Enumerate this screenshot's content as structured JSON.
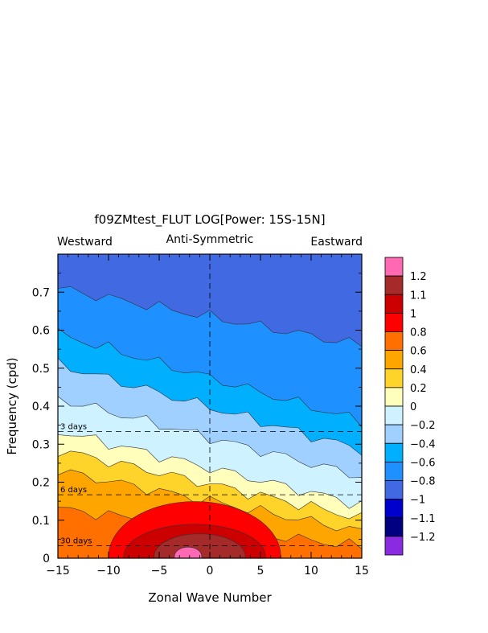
{
  "chart_data": {
    "type": "heatmap",
    "title": "f09ZMtest_FLUT LOG[Power: 15S-15N]",
    "subtitle": "Anti-Symmetric",
    "left_label": "Westward",
    "right_label": "Eastward",
    "xlabel": "Zonal Wave Number",
    "ylabel": "Frequency (cpd)",
    "xlim": [
      -15,
      15
    ],
    "ylim": [
      0,
      0.8
    ],
    "x_ticks": [
      "−15",
      "−10",
      "−5",
      "0",
      "5",
      "10",
      "15"
    ],
    "y_ticks": [
      "0",
      "0.1",
      "0.2",
      "0.3",
      "0.4",
      "0.5",
      "0.6",
      "0.7"
    ],
    "period_lines": [
      {
        "label": "3 days",
        "frequency": 0.333
      },
      {
        "label": "6 days",
        "frequency": 0.167
      },
      {
        "label": "30 days",
        "frequency": 0.033
      }
    ],
    "colorbar": {
      "labels": [
        "1.2",
        "1.1",
        "1",
        "0.8",
        "0.6",
        "0.4",
        "0.2",
        "0",
        "−0.2",
        "−0.4",
        "−0.6",
        "−0.8",
        "−1",
        "−1.1",
        "−1.2"
      ],
      "colors": [
        "#ff69b4",
        "#a52a2a",
        "#cc0000",
        "#ff0000",
        "#ff7000",
        "#ffa500",
        "#ffd42a",
        "#ffffbb",
        "#cef2ff",
        "#a0d0ff",
        "#00b0ff",
        "#1e90ff",
        "#4169e1",
        "#0000cd",
        "#000080",
        "#8a2be2"
      ]
    },
    "contour_levels": [
      {
        "level": -0.8,
        "color": "#1e90ff",
        "y_west": 0.71,
        "y_east": 0.56
      },
      {
        "level": -0.6,
        "color": "#00b0ff",
        "y_west": 0.59,
        "y_east": 0.36
      },
      {
        "level": -0.4,
        "color": "#a0d0ff",
        "y_west": 0.51,
        "y_east": 0.285
      },
      {
        "level": -0.2,
        "color": "#cef2ff",
        "y_west": 0.42,
        "y_east": 0.215
      },
      {
        "level": 0,
        "color": "#ffffbb",
        "y_west": 0.335,
        "y_east": 0.14
      },
      {
        "level": 0.2,
        "color": "#ffd42a",
        "y_west": 0.285,
        "y_east": 0.105
      },
      {
        "level": 0.4,
        "color": "#ffa500",
        "y_west": 0.23,
        "y_east": 0.07
      },
      {
        "level": 0.6,
        "color": "#ff7000",
        "y_west": 0.13,
        "y_east": 0.03
      }
    ],
    "peak_regions": [
      {
        "level": 0.8,
        "color": "#ff0000",
        "x_range": [
          -10,
          7
        ],
        "y_range": [
          0,
          0.145
        ]
      },
      {
        "level": 1,
        "color": "#cc0000",
        "x_range": [
          -8.5,
          5.5
        ],
        "y_range": [
          0,
          0.085
        ]
      },
      {
        "level": 1.1,
        "color": "#a52a2a",
        "x_range": [
          -5.5,
          3.5
        ],
        "y_range": [
          0,
          0.06
        ]
      },
      {
        "level": 1.2,
        "color": "#ff69b4",
        "x_range": [
          -3.5,
          -0.8
        ],
        "y_range": [
          0,
          0.025
        ]
      }
    ],
    "background_level": {
      "level": -1,
      "color": "#4169e1"
    }
  }
}
